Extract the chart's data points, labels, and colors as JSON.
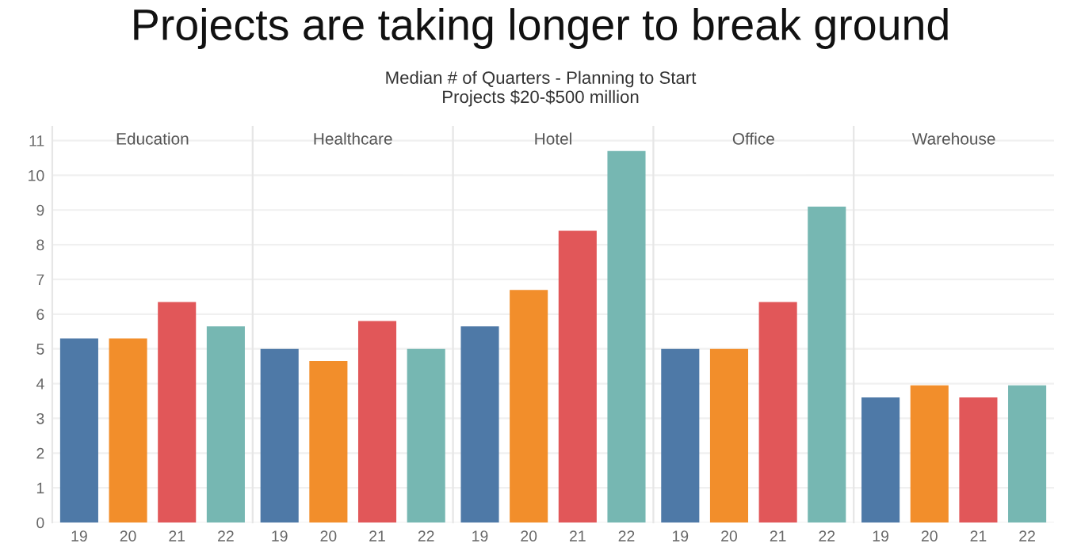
{
  "chart_data": [
    {
      "type": "bar",
      "title": "Education",
      "annotations": [
        "Projects are taking longer to break ground",
        "Median # of Quarters - Planning to Start",
        "Projects $20-$500 million"
      ],
      "categories": [
        "19",
        "20",
        "21",
        "22"
      ],
      "values": [
        5.3,
        5.3,
        6.35,
        5.65
      ],
      "colors": [
        "#4e79a7",
        "#f28e2b",
        "#e15759",
        "#76b7b2"
      ],
      "ylim": [
        0,
        11.4
      ],
      "yticks": [
        0,
        1,
        2,
        3,
        4,
        5,
        6,
        7,
        8,
        9,
        10,
        11
      ],
      "grid": "y"
    },
    {
      "type": "bar",
      "title": "Healthcare",
      "categories": [
        "19",
        "20",
        "21",
        "22"
      ],
      "values": [
        5.0,
        4.65,
        5.8,
        5.0
      ],
      "colors": [
        "#4e79a7",
        "#f28e2b",
        "#e15759",
        "#76b7b2"
      ],
      "ylim": [
        0,
        11.4
      ],
      "yticks": [
        0,
        1,
        2,
        3,
        4,
        5,
        6,
        7,
        8,
        9,
        10,
        11
      ],
      "grid": "y",
      "tick_labels": "x"
    },
    {
      "type": "bar",
      "title": "Hotel",
      "categories": [
        "19",
        "20",
        "21",
        "22"
      ],
      "values": [
        5.65,
        6.7,
        8.4,
        10.7
      ],
      "colors": [
        "#4e79a7",
        "#f28e2b",
        "#e15759",
        "#76b7b2"
      ],
      "ylim": [
        0,
        11.4
      ],
      "yticks": [
        0,
        1,
        2,
        3,
        4,
        5,
        6,
        7,
        8,
        9,
        10,
        11
      ],
      "grid": "y",
      "tick_labels": "x"
    },
    {
      "type": "bar",
      "title": "Office",
      "categories": [
        "19",
        "20",
        "21",
        "22"
      ],
      "values": [
        5.0,
        5.0,
        6.35,
        9.1
      ],
      "colors": [
        "#4e79a7",
        "#f28e2b",
        "#e15759",
        "#76b7b2"
      ],
      "ylim": [
        0,
        11.4
      ],
      "yticks": [
        0,
        1,
        2,
        3,
        4,
        5,
        6,
        7,
        8,
        9,
        10,
        11
      ],
      "grid": "y",
      "tick_labels": "x"
    },
    {
      "type": "bar",
      "title": "Warehouse",
      "categories": [
        "19",
        "20",
        "21",
        "22"
      ],
      "values": [
        3.6,
        3.95,
        3.6,
        3.95
      ],
      "colors": [
        "#4e79a7",
        "#f28e2b",
        "#e15759",
        "#76b7b2"
      ],
      "ylim": [
        0,
        11.4
      ],
      "yticks": [
        0,
        1,
        2,
        3,
        4,
        5,
        6,
        7,
        8,
        9,
        10,
        11
      ],
      "grid": "y",
      "tick_labels": "x"
    }
  ]
}
